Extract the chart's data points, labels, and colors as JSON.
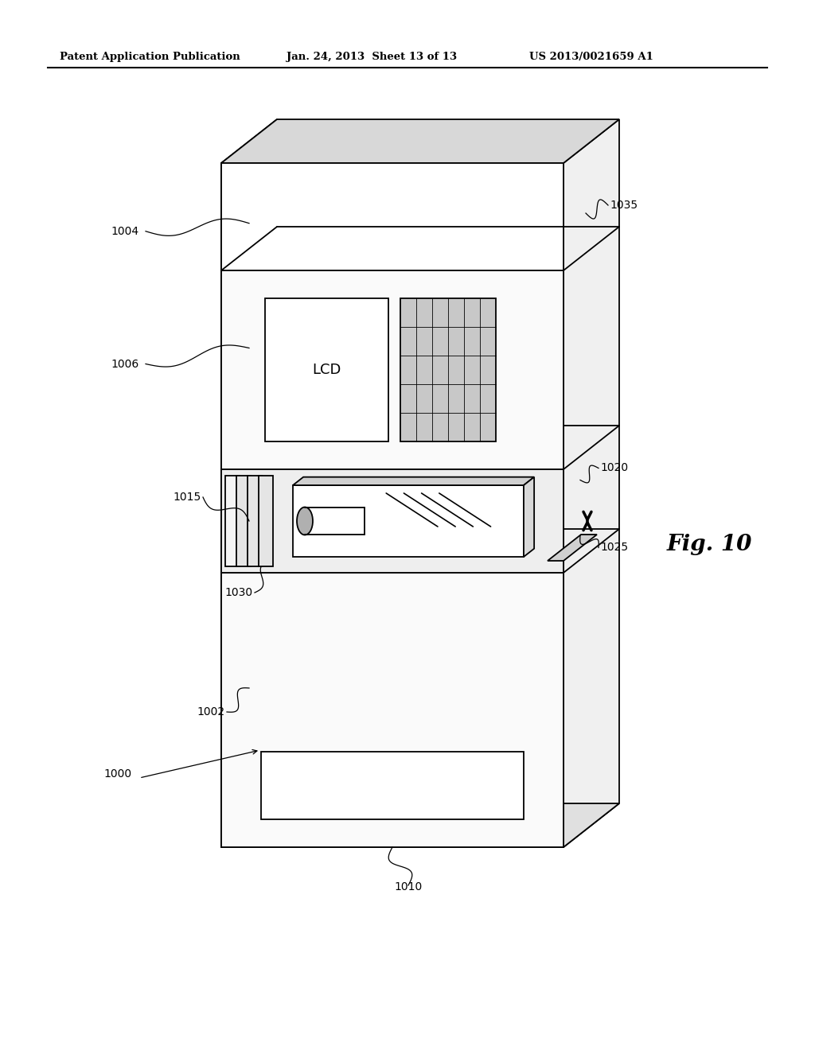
{
  "bg_color": "#ffffff",
  "line_color": "#000000",
  "header_text": "Patent Application Publication",
  "header_date": "Jan. 24, 2013  Sheet 13 of 13",
  "header_patent": "US 2013/0021659 A1",
  "fig_label": "Fig. 10",
  "lw_main": 1.3,
  "lw_thin": 0.8,
  "label_fs": 10
}
